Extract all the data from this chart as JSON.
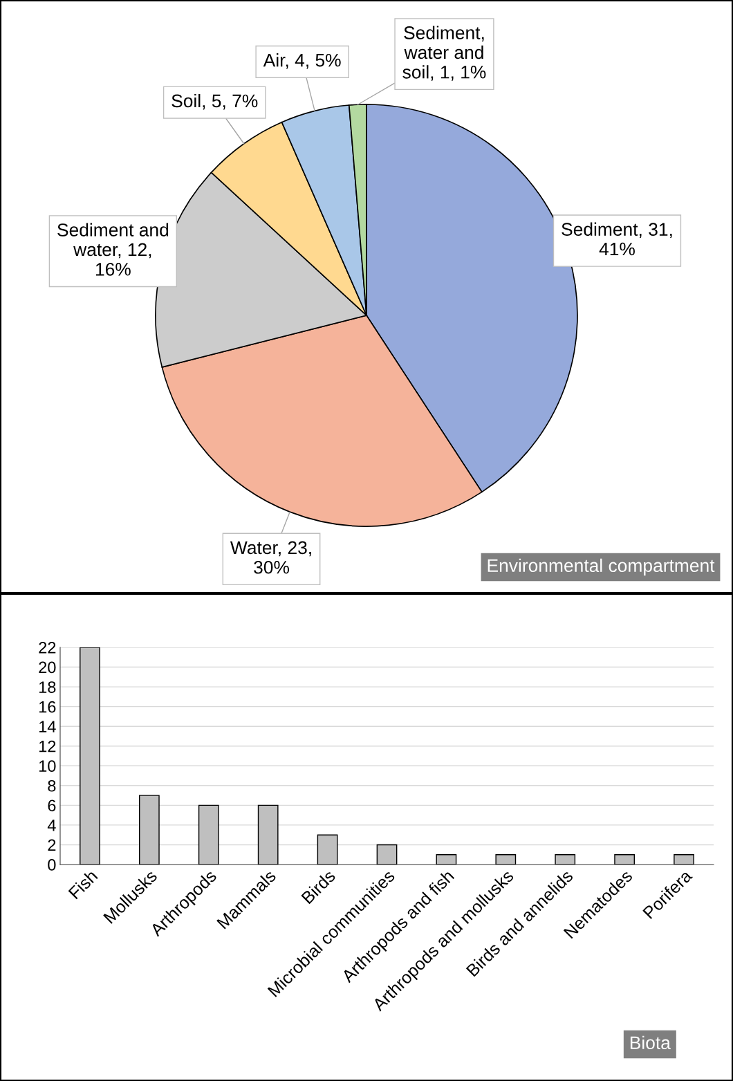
{
  "chart_data": [
    {
      "type": "pie",
      "title": "Environmental compartment",
      "categories": [
        "Sediment",
        "Water",
        "Sediment and water",
        "Soil",
        "Air",
        "Sediment, water and soil"
      ],
      "values": [
        31,
        23,
        12,
        5,
        4,
        1
      ],
      "value_labels": [
        "31, 41%",
        "23, 30%",
        "12, 16%",
        "5, 7%",
        "4, 5%",
        "1, 1%"
      ],
      "colors": [
        "#95a9db",
        "#f5b39a",
        "#cccccc",
        "#ffd990",
        "#a9c7e8",
        "#b3d9a0"
      ]
    },
    {
      "type": "bar",
      "title": "Biota",
      "categories": [
        "Fish",
        "Mollusks",
        "Arthropods",
        "Mammals",
        "Birds",
        "Microbial communities",
        "Arthropods and fish",
        "Arthropods and mollusks",
        "Birds and annelids",
        "Nematodes",
        "Porifera"
      ],
      "values": [
        22,
        7,
        6,
        6,
        3,
        2,
        1,
        1,
        1,
        1,
        1
      ],
      "color": "#bfbfbf",
      "ylim": [
        0,
        22
      ],
      "yticks": [
        0,
        2,
        4,
        6,
        8,
        10,
        12,
        14,
        16,
        18,
        20,
        22
      ],
      "grid": "y"
    }
  ]
}
